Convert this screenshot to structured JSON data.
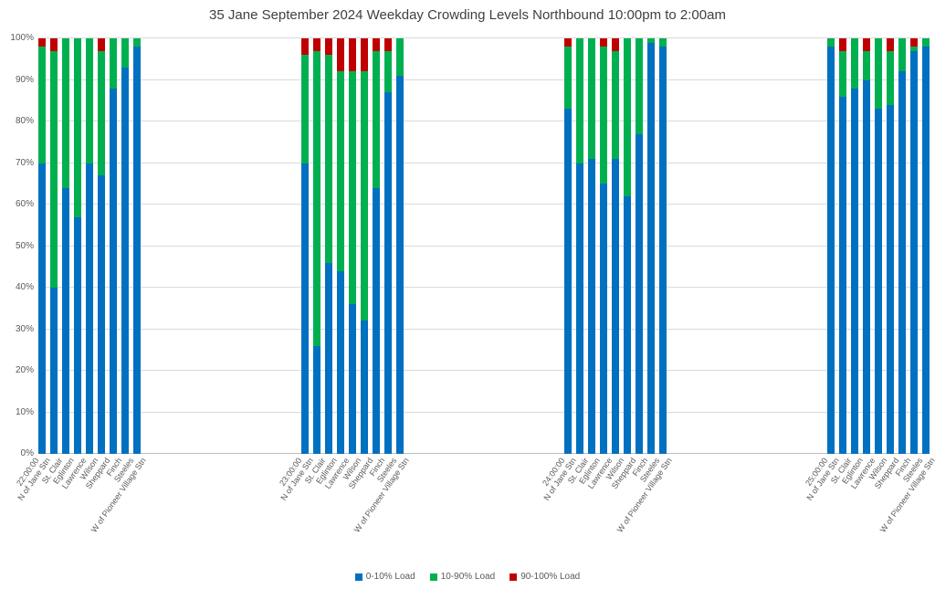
{
  "chart_data": {
    "type": "bar",
    "stacked": true,
    "title": "35 Jane September 2024 Weekday Crowding Levels Northbound 10:00pm to 2:00am",
    "xlabel": "",
    "ylabel": "",
    "ylim": [
      0,
      100
    ],
    "grid": true,
    "legend_position": "bottom",
    "yticks": [
      "0%",
      "10%",
      "20%",
      "30%",
      "40%",
      "50%",
      "60%",
      "70%",
      "80%",
      "90%",
      "100%"
    ],
    "series": [
      {
        "name": "0-10% Load",
        "color": "#0070C0"
      },
      {
        "name": "10-90% Load",
        "color": "#00B050"
      },
      {
        "name": "90-100% Load",
        "color": "#C00000"
      }
    ],
    "stations": [
      "N of Jane Stn",
      "St. Clair",
      "Eglinton",
      "Lawrence",
      "Wilson",
      "Sheppard",
      "Finch",
      "Steeles",
      "W of Pioneer Village Stn"
    ],
    "groups": [
      {
        "time": "22:00:00",
        "values": [
          [
            70,
            28,
            2
          ],
          [
            40,
            57,
            3
          ],
          [
            64,
            36,
            0
          ],
          [
            57,
            43,
            0
          ],
          [
            70,
            30,
            0
          ],
          [
            67,
            30,
            3
          ],
          [
            88,
            12,
            0
          ],
          [
            93,
            7,
            0
          ],
          [
            98,
            2,
            0
          ]
        ]
      },
      {
        "time": "23:00:00",
        "values": [
          [
            70,
            26,
            4
          ],
          [
            26,
            71,
            3
          ],
          [
            46,
            50,
            4
          ],
          [
            44,
            48,
            8
          ],
          [
            36,
            56,
            8
          ],
          [
            32,
            60,
            8
          ],
          [
            64,
            33,
            3
          ],
          [
            87,
            10,
            3
          ],
          [
            91,
            9,
            0
          ]
        ]
      },
      {
        "time": "24:00:00",
        "values": [
          [
            83,
            15,
            2
          ],
          [
            70,
            30,
            0
          ],
          [
            71,
            29,
            0
          ],
          [
            65,
            33,
            2
          ],
          [
            71,
            26,
            3
          ],
          [
            62,
            38,
            0
          ],
          [
            77,
            23,
            0
          ],
          [
            99,
            1,
            0
          ],
          [
            98,
            2,
            0
          ]
        ]
      },
      {
        "time": "25:00:00",
        "values": [
          [
            98,
            2,
            0
          ],
          [
            86,
            11,
            3
          ],
          [
            88,
            12,
            0
          ],
          [
            90,
            7,
            3
          ],
          [
            83,
            17,
            0
          ],
          [
            84,
            13,
            3
          ],
          [
            92,
            8,
            0
          ],
          [
            97,
            1,
            2
          ],
          [
            98,
            2,
            0
          ]
        ]
      }
    ]
  },
  "style": {
    "grid_color": "#D9D9D9",
    "axis_color": "#BFBFBF",
    "text_color": "#595959",
    "title_color": "#404040",
    "background": "#FFFFFF"
  }
}
